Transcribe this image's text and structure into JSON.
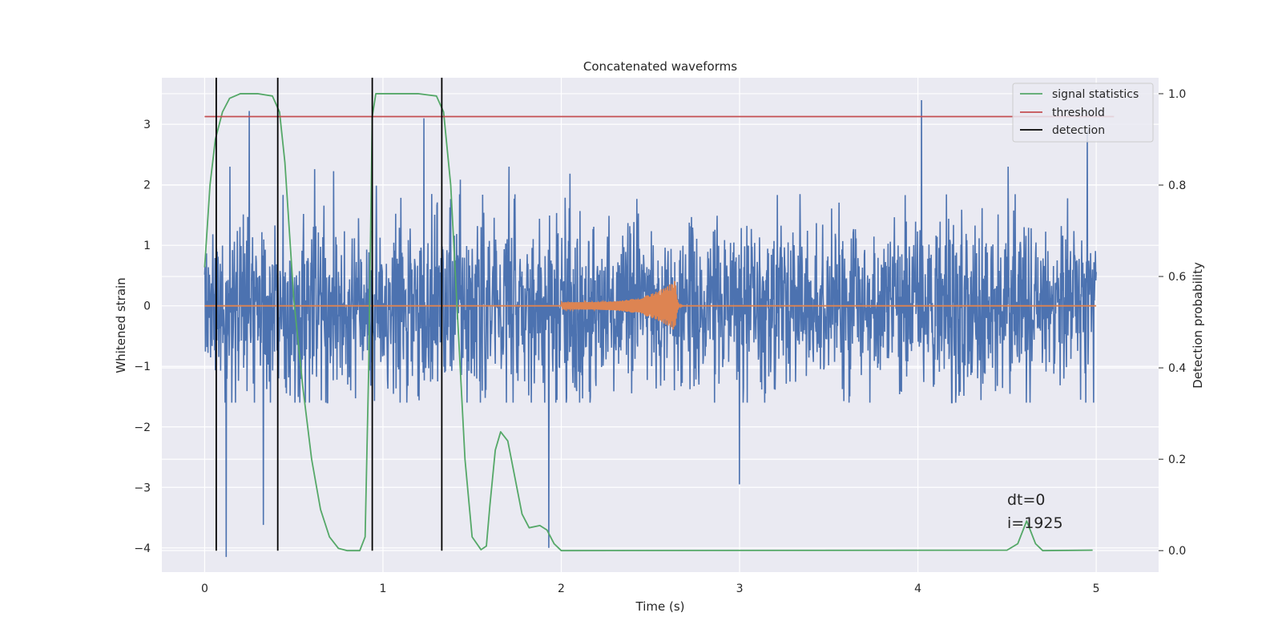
{
  "chart_data": {
    "type": "line",
    "title": "Concatenated waveforms",
    "xlabel": "Time (s)",
    "ylabel": "Whitened strain",
    "y2label": "Detection probability",
    "xlim": [
      -0.24,
      5.35
    ],
    "ylim": [
      -4.4,
      3.77
    ],
    "y2lim": [
      -0.047,
      1.035
    ],
    "xticks": [
      0,
      1,
      2,
      3,
      4,
      5
    ],
    "yticks": [
      -4,
      -3,
      -2,
      -1,
      0,
      1,
      2,
      3
    ],
    "y2ticks": [
      0.0,
      0.2,
      0.4,
      0.6,
      0.8,
      1.0
    ],
    "ytick_labels": [
      "−4",
      "−3",
      "−2",
      "−1",
      "0",
      "1",
      "2",
      "3"
    ],
    "y2tick_labels": [
      "0.0",
      "0.2",
      "0.4",
      "0.6",
      "0.8",
      "1.0"
    ],
    "grid": true,
    "legend_position": "top-right",
    "colors": {
      "strain": "#4c72b0",
      "template": "#dd8452",
      "signal": "#55a868",
      "threshold": "#c44e52",
      "detection": "#000000",
      "background": "#eaeaf2",
      "grid": "#ffffff"
    },
    "series": [
      {
        "name": "",
        "role": "strain",
        "x_range": [
          0,
          5
        ],
        "y_range_typical": [
          -1.6,
          2.3
        ],
        "y_extremes": [
          {
            "x": 0.12,
            "y": -4.15
          },
          {
            "x": 0.33,
            "y": -3.62
          },
          {
            "x": 0.25,
            "y": 3.22
          },
          {
            "x": 1.23,
            "y": 3.1
          },
          {
            "x": 4.02,
            "y": 3.4
          },
          {
            "x": 1.93,
            "y": -4.0
          },
          {
            "x": 3.0,
            "y": -2.95
          },
          {
            "x": 4.95,
            "y": 2.9
          }
        ]
      },
      {
        "name": "",
        "role": "template",
        "x_range": [
          0,
          5
        ],
        "chirp_start": 2.0,
        "chirp_end": 2.64,
        "peak_amplitude": 0.42
      },
      {
        "name": "signal statistics",
        "role": "signal",
        "points": [
          [
            0.0,
            0.62
          ],
          [
            0.03,
            0.8
          ],
          [
            0.06,
            0.9
          ],
          [
            0.1,
            0.96
          ],
          [
            0.14,
            0.99
          ],
          [
            0.2,
            1.0
          ],
          [
            0.3,
            1.0
          ],
          [
            0.38,
            0.995
          ],
          [
            0.42,
            0.96
          ],
          [
            0.45,
            0.85
          ],
          [
            0.5,
            0.55
          ],
          [
            0.55,
            0.36
          ],
          [
            0.6,
            0.2
          ],
          [
            0.65,
            0.09
          ],
          [
            0.7,
            0.03
          ],
          [
            0.75,
            0.005
          ],
          [
            0.8,
            0.0
          ],
          [
            0.87,
            0.0
          ],
          [
            0.9,
            0.03
          ],
          [
            0.92,
            0.4
          ],
          [
            0.94,
            0.95
          ],
          [
            0.96,
            1.0
          ],
          [
            1.0,
            1.0
          ],
          [
            1.2,
            1.0
          ],
          [
            1.3,
            0.995
          ],
          [
            1.34,
            0.96
          ],
          [
            1.38,
            0.8
          ],
          [
            1.42,
            0.5
          ],
          [
            1.46,
            0.2
          ],
          [
            1.5,
            0.03
          ],
          [
            1.55,
            0.002
          ],
          [
            1.58,
            0.01
          ],
          [
            1.6,
            0.1
          ],
          [
            1.63,
            0.22
          ],
          [
            1.66,
            0.26
          ],
          [
            1.7,
            0.24
          ],
          [
            1.74,
            0.16
          ],
          [
            1.78,
            0.08
          ],
          [
            1.82,
            0.05
          ],
          [
            1.88,
            0.055
          ],
          [
            1.92,
            0.045
          ],
          [
            1.96,
            0.015
          ],
          [
            2.0,
            0.0
          ],
          [
            4.5,
            0.001
          ],
          [
            4.56,
            0.015
          ],
          [
            4.61,
            0.065
          ],
          [
            4.66,
            0.015
          ],
          [
            4.7,
            0.0
          ],
          [
            4.98,
            0.001
          ]
        ]
      },
      {
        "name": "threshold",
        "role": "threshold",
        "y2_value": 0.95,
        "x_range": [
          0,
          5.1
        ]
      },
      {
        "name": "detection",
        "role": "detection",
        "x_values": [
          0.065,
          0.41,
          0.94,
          1.33
        ]
      }
    ],
    "annotations": [
      {
        "text": "dt=0",
        "x": 4.5,
        "y": -3.32
      },
      {
        "text": "i=1925",
        "x": 4.5,
        "y": -3.7
      }
    ]
  }
}
